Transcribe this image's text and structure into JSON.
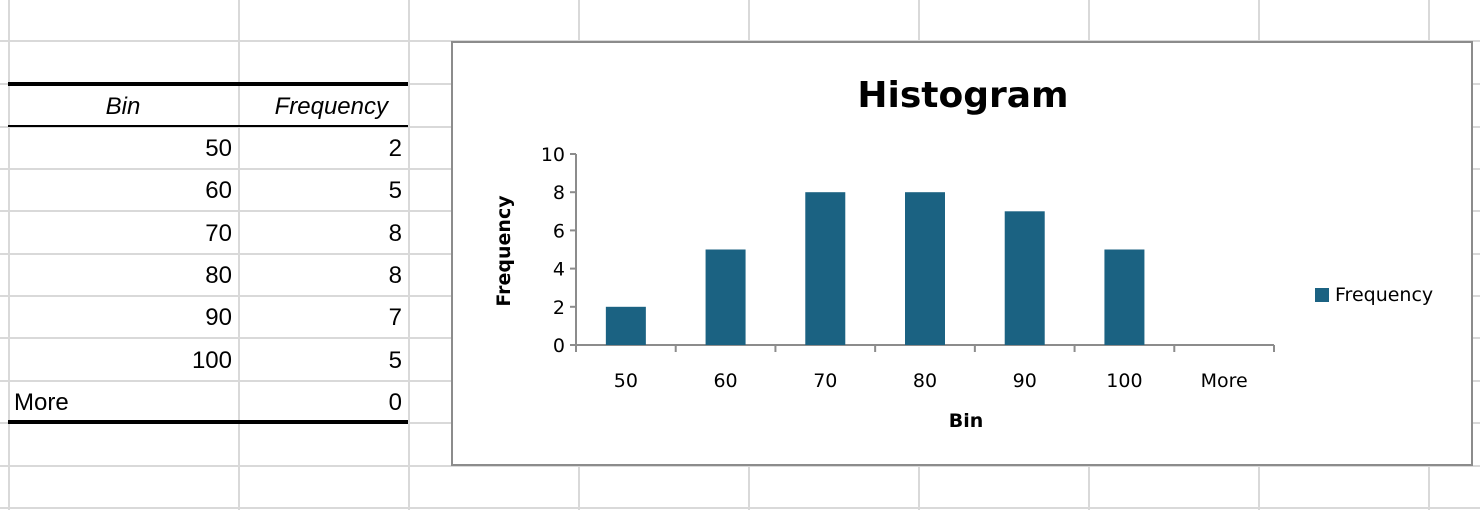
{
  "table": {
    "headers": [
      "Bin",
      "Frequency"
    ],
    "rows": [
      {
        "bin": "50",
        "frequency": "2"
      },
      {
        "bin": "60",
        "frequency": "5"
      },
      {
        "bin": "70",
        "frequency": "8"
      },
      {
        "bin": "80",
        "frequency": "8"
      },
      {
        "bin": "90",
        "frequency": "7"
      },
      {
        "bin": "100",
        "frequency": "5"
      },
      {
        "bin": "More",
        "frequency": "0"
      }
    ]
  },
  "chart_data": {
    "type": "bar",
    "title": "Histogram",
    "xlabel": "Bin",
    "ylabel": "Frequency",
    "categories": [
      "50",
      "60",
      "70",
      "80",
      "90",
      "100",
      "More"
    ],
    "series": [
      {
        "name": "Frequency",
        "values": [
          2,
          5,
          8,
          8,
          7,
          5,
          0
        ],
        "color": "#1b6282"
      }
    ],
    "ylim": [
      0,
      10
    ],
    "yticks": [
      "0",
      "2",
      "4",
      "6",
      "8",
      "10"
    ],
    "grid": false,
    "legend": "right"
  }
}
